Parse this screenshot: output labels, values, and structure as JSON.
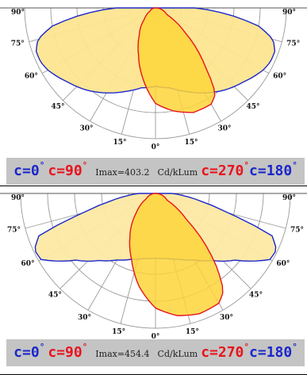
{
  "chart_data": [
    {
      "type": "polar",
      "angle_labels": [
        "90°",
        "75°",
        "60°",
        "45°",
        "30°",
        "15°",
        "0°",
        "15°",
        "30°",
        "45°",
        "60°",
        "75°",
        "90°"
      ],
      "series": [
        {
          "name": "c=0° c=180°",
          "color": "#1c27c9",
          "fill": "#fde58f",
          "angles": [
            0,
            10,
            20,
            30,
            40,
            50,
            60,
            65,
            70,
            75,
            80,
            85,
            90
          ],
          "values": [
            0.6,
            0.62,
            0.68,
            0.75,
            0.82,
            0.88,
            0.95,
            0.97,
            0.97,
            0.93,
            0.8,
            0.55,
            0.3
          ]
        },
        {
          "name": "c=90° c=270°",
          "color": "#e8141d",
          "fill": "#fdd53a",
          "angles": [
            -90,
            -60,
            -45,
            -30,
            -20,
            -10,
            0,
            10,
            20,
            30,
            35,
            40,
            45,
            50,
            60,
            90
          ],
          "values": [
            0.0,
            0.05,
            0.12,
            0.25,
            0.38,
            0.55,
            0.73,
            0.8,
            0.85,
            0.85,
            0.8,
            0.6,
            0.45,
            0.3,
            0.1,
            0.0
          ]
        }
      ],
      "legend": {
        "c0": "c=0",
        "c90": "c=90",
        "c270": "c=270",
        "c180": "c=180",
        "deg": "°",
        "imax": "Imax=403.2",
        "unit": "Cd/kLum"
      }
    },
    {
      "type": "polar",
      "angle_labels": [
        "90°",
        "75°",
        "60°",
        "45°",
        "30°",
        "15°",
        "0°",
        "15°",
        "30°",
        "45°",
        "60°",
        "75°",
        "90°"
      ],
      "series": [
        {
          "name": "c=0° c=180°",
          "color": "#1c27c9",
          "fill": "#fde9a4",
          "angles": [
            0,
            10,
            20,
            30,
            40,
            50,
            60,
            65,
            70,
            75,
            80,
            85,
            90
          ],
          "values": [
            0.48,
            0.49,
            0.52,
            0.57,
            0.65,
            0.77,
            0.98,
            0.99,
            0.92,
            0.55,
            0.35,
            0.22,
            0.12
          ]
        },
        {
          "name": "c=90° c=270°",
          "color": "#e8141d",
          "fill": "#fdd53a",
          "angles": [
            -90,
            -60,
            -45,
            -30,
            -20,
            -10,
            0,
            10,
            20,
            30,
            35,
            40,
            45,
            50,
            60,
            90
          ],
          "values": [
            0.0,
            0.08,
            0.2,
            0.38,
            0.52,
            0.7,
            0.85,
            0.92,
            0.95,
            0.94,
            0.88,
            0.7,
            0.5,
            0.3,
            0.1,
            0.0
          ]
        }
      ],
      "legend": {
        "c0": "c=0",
        "c90": "c=90",
        "c270": "c=270",
        "c180": "c=180",
        "deg": "°",
        "imax": "Imax=454.4",
        "unit": "Cd/kLum"
      }
    }
  ]
}
